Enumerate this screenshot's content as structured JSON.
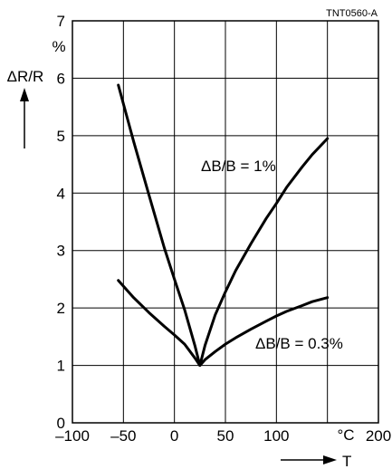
{
  "chart_data": {
    "type": "line",
    "figure_id": "TNT0560-A",
    "ylabel": "ΔR/R",
    "yunit": "%",
    "xlabel": "T",
    "xunit": "°C",
    "xlim": [
      -100,
      200
    ],
    "ylim": [
      0,
      7
    ],
    "x_ticks": [
      -100,
      -50,
      0,
      50,
      100,
      150,
      200
    ],
    "x_tick_labels": [
      "–100",
      "–50",
      "0",
      "50",
      "100",
      "",
      "200"
    ],
    "y_ticks": [
      0,
      1,
      2,
      3,
      4,
      5,
      6,
      7
    ],
    "y_tick_labels": [
      "0",
      "1",
      "2",
      "3",
      "4",
      "5",
      "6",
      "7"
    ],
    "grid": true,
    "series": [
      {
        "name": "ΔB/B = 1%",
        "x": [
          -55,
          -40,
          -25,
          -10,
          0,
          10,
          20,
          25,
          30,
          40,
          50,
          60,
          75,
          90,
          100,
          110,
          125,
          135,
          150
        ],
        "y": [
          5.88,
          4.9,
          3.97,
          3.05,
          2.5,
          1.97,
          1.35,
          1.0,
          1.35,
          1.88,
          2.28,
          2.65,
          3.12,
          3.56,
          3.82,
          4.1,
          4.45,
          4.67,
          4.95
        ]
      },
      {
        "name": "ΔB/B = 0.3%",
        "x": [
          -55,
          -40,
          -25,
          -10,
          0,
          10,
          20,
          25,
          30,
          40,
          50,
          60,
          75,
          90,
          100,
          110,
          125,
          135,
          150
        ],
        "y": [
          2.48,
          2.18,
          1.92,
          1.68,
          1.53,
          1.37,
          1.13,
          1.0,
          1.1,
          1.24,
          1.37,
          1.48,
          1.63,
          1.77,
          1.86,
          1.94,
          2.04,
          2.11,
          2.18
        ]
      }
    ]
  }
}
